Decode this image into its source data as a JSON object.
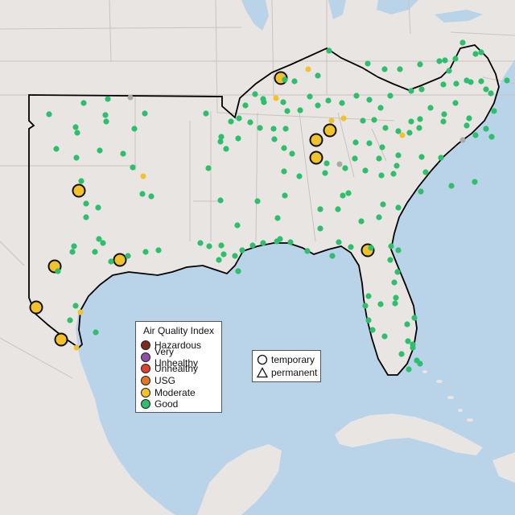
{
  "legend": {
    "title": "Air Quality Index",
    "categories": [
      {
        "label": "Hazardous",
        "color": "#7e2a1c"
      },
      {
        "label": "Very Unhealthy",
        "color": "#8f4fa3"
      },
      {
        "label": "Unhealthy",
        "color": "#e0412f"
      },
      {
        "label": "USG",
        "color": "#e0791f"
      },
      {
        "label": "Moderate",
        "color": "#f2c22a"
      },
      {
        "label": "Good",
        "color": "#2dbf6b"
      }
    ]
  },
  "shape_legend": {
    "temporary": "temporary",
    "permanent": "permanent"
  },
  "colors": {
    "water": "#b9d3e8",
    "land": "#e9e5e2",
    "border": "#c9c3c0",
    "region_outline": "#000000",
    "no_data_marker": "#a9a9a9"
  }
}
